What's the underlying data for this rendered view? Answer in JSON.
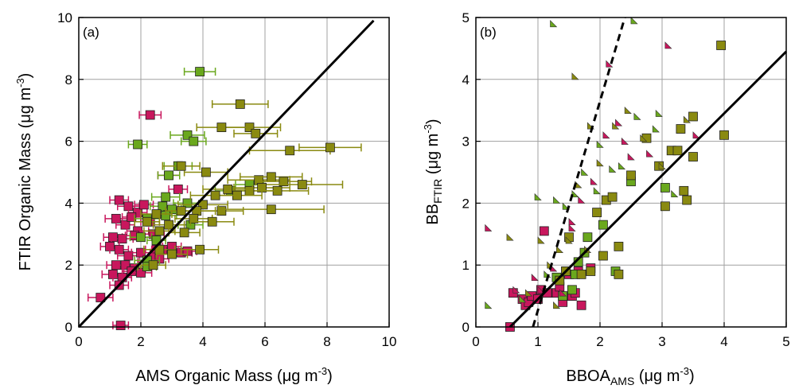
{
  "colors": {
    "pink": "#c8175d",
    "green": "#6aa81d",
    "olive": "#8a8a10",
    "grid": "#a0a0a0",
    "axis": "#000000"
  },
  "chart_data": [
    {
      "type": "scatter",
      "panel_label": "(a)",
      "xlabel": {
        "main": "AMS Organic Mass (",
        "mu": "μ",
        "unit": "g m",
        "sup": "-3",
        "close": ")"
      },
      "ylabel": {
        "main": "FTIR Organic Mass (",
        "mu": "μ",
        "unit": "g m",
        "sup": "-3",
        "close": ")"
      },
      "xlim": [
        0,
        10
      ],
      "ylim": [
        0,
        10
      ],
      "xticks": [
        "0",
        "2",
        "4",
        "6",
        "8",
        "10"
      ],
      "yticks": [
        "0",
        "2",
        "4",
        "6",
        "8",
        "10"
      ],
      "grid": true,
      "lines": [
        {
          "style": "solid",
          "x": [
            0,
            9.5
          ],
          "y": [
            0,
            9.9
          ]
        }
      ],
      "series": [
        {
          "color": "pink",
          "marker": "square",
          "points": [
            [
              0.7,
              0.95,
              0.4
            ],
            [
              1.35,
              0.05,
              0.25
            ],
            [
              2.3,
              6.85,
              0.35
            ],
            [
              1.3,
              4.1,
              0.3
            ],
            [
              1.6,
              3.9,
              0.35
            ],
            [
              1.9,
              3.7,
              0.3
            ],
            [
              2.1,
              3.95,
              0.3
            ],
            [
              1.2,
              3.5,
              0.35
            ],
            [
              1.5,
              3.3,
              0.3
            ],
            [
              1.9,
              3.1,
              0.35
            ],
            [
              1.1,
              2.9,
              0.3
            ],
            [
              1.4,
              2.85,
              0.35
            ],
            [
              1.8,
              2.95,
              0.3
            ],
            [
              2.4,
              3.0,
              0.35
            ],
            [
              1.0,
              2.6,
              0.3
            ],
            [
              1.3,
              2.5,
              0.3
            ],
            [
              1.6,
              2.3,
              0.35
            ],
            [
              2.0,
              2.4,
              0.3
            ],
            [
              2.5,
              2.5,
              0.35
            ],
            [
              1.2,
              2.0,
              0.3
            ],
            [
              1.5,
              2.0,
              0.3
            ],
            [
              1.8,
              1.9,
              0.35
            ],
            [
              2.2,
              2.1,
              0.3
            ],
            [
              1.1,
              1.7,
              0.35
            ],
            [
              1.4,
              1.6,
              0.3
            ],
            [
              1.7,
              1.8,
              0.3
            ],
            [
              2.0,
              1.75,
              0.35
            ],
            [
              2.4,
              2.25,
              0.3
            ],
            [
              2.7,
              2.5,
              0.35
            ],
            [
              3.0,
              2.6,
              0.3
            ],
            [
              3.3,
              2.4,
              0.35
            ],
            [
              3.5,
              2.45,
              0.3
            ],
            [
              2.9,
              4.9,
              0.35
            ],
            [
              3.2,
              4.45,
              0.3
            ],
            [
              2.6,
              2.2,
              0.3
            ],
            [
              1.3,
              1.35,
              0.3
            ],
            [
              2.3,
              3.4,
              0.3
            ],
            [
              1.7,
              3.55,
              0.3
            ]
          ]
        },
        {
          "color": "green",
          "marker": "square",
          "points": [
            [
              3.9,
              8.25,
              0.5
            ],
            [
              1.9,
              5.9,
              0.3
            ],
            [
              3.5,
              6.2,
              0.55
            ],
            [
              3.7,
              6.0,
              0.4
            ],
            [
              3.2,
              5.2,
              0.45
            ],
            [
              2.9,
              4.9,
              0.35
            ],
            [
              2.8,
              4.2,
              0.45
            ],
            [
              2.7,
              3.9,
              0.4
            ],
            [
              3.5,
              4.0,
              0.45
            ],
            [
              3.0,
              3.8,
              0.3
            ],
            [
              2.2,
              3.5,
              0.4
            ],
            [
              2.0,
              2.9,
              0.35
            ],
            [
              2.5,
              2.8,
              0.3
            ],
            [
              2.2,
              2.15,
              0.4
            ],
            [
              2.2,
              1.95,
              0.3
            ],
            [
              2.8,
              3.6,
              0.35
            ],
            [
              3.6,
              3.3,
              0.4
            ],
            [
              4.9,
              4.4,
              0.5
            ],
            [
              5.5,
              4.6,
              0.45
            ]
          ]
        },
        {
          "color": "olive",
          "marker": "square",
          "points": [
            [
              5.2,
              7.2,
              0.9
            ],
            [
              5.5,
              6.45,
              1.0
            ],
            [
              4.6,
              6.45,
              0.8
            ],
            [
              5.7,
              6.25,
              0.7
            ],
            [
              6.8,
              5.7,
              1.3
            ],
            [
              8.1,
              5.8,
              1.0
            ],
            [
              4.1,
              5.0,
              0.7
            ],
            [
              3.3,
              5.2,
              0.6
            ],
            [
              5.8,
              4.75,
              1.0
            ],
            [
              6.2,
              4.85,
              1.0
            ],
            [
              6.6,
              4.7,
              0.9
            ],
            [
              7.2,
              4.6,
              1.3
            ],
            [
              5.9,
              4.5,
              0.9
            ],
            [
              6.4,
              4.4,
              1.0
            ],
            [
              5.5,
              4.4,
              0.8
            ],
            [
              4.8,
              4.45,
              0.8
            ],
            [
              5.1,
              4.25,
              0.8
            ],
            [
              4.4,
              4.25,
              0.8
            ],
            [
              4.0,
              3.95,
              0.8
            ],
            [
              3.8,
              3.75,
              0.6
            ],
            [
              4.6,
              3.75,
              0.7
            ],
            [
              3.3,
              3.75,
              0.5
            ],
            [
              2.5,
              3.65,
              0.5
            ],
            [
              2.2,
              3.4,
              0.4
            ],
            [
              3.7,
              3.5,
              0.6
            ],
            [
              4.3,
              3.4,
              0.7
            ],
            [
              6.2,
              3.8,
              1.7
            ],
            [
              2.9,
              3.3,
              0.5
            ],
            [
              3.4,
              3.05,
              0.5
            ],
            [
              2.6,
              3.1,
              0.5
            ],
            [
              3.9,
              2.5,
              0.6
            ],
            [
              2.6,
              2.5,
              0.5
            ],
            [
              3.0,
              2.35,
              0.5
            ],
            [
              2.4,
              2.0,
              0.4
            ]
          ]
        }
      ]
    },
    {
      "type": "scatter",
      "panel_label": "(b)",
      "xlabel": {
        "main": "BBOA",
        "sub": "AMS",
        "open": " (",
        "mu": "μ",
        "unit": "g m",
        "sup": "-3",
        "close": ")"
      },
      "ylabel": {
        "main": "BB",
        "sub": "FTIR",
        "open": " (",
        "mu": "μ",
        "unit": "g m",
        "sup": "-3",
        "close": ")"
      },
      "xlim": [
        0,
        5
      ],
      "ylim": [
        0,
        5
      ],
      "xticks": [
        "0",
        "1",
        "2",
        "3",
        "4",
        "5"
      ],
      "yticks": [
        "0",
        "1",
        "2",
        "3",
        "4",
        "5"
      ],
      "grid": true,
      "lines": [
        {
          "style": "solid",
          "x": [
            0.55,
            5.0
          ],
          "y": [
            0.0,
            4.45
          ]
        },
        {
          "style": "dashed",
          "x": [
            0.92,
            2.4
          ],
          "y": [
            0.0,
            5.0
          ]
        }
      ],
      "series": [
        {
          "color": "pink",
          "marker": "square",
          "points": [
            [
              0.55,
              0.0
            ],
            [
              0.6,
              0.55
            ],
            [
              0.75,
              0.45
            ],
            [
              0.8,
              0.35
            ],
            [
              0.85,
              0.4
            ],
            [
              0.9,
              0.5
            ],
            [
              1.0,
              0.45
            ],
            [
              1.05,
              0.6
            ],
            [
              1.1,
              1.55
            ],
            [
              1.15,
              0.55
            ],
            [
              1.3,
              0.55
            ],
            [
              1.35,
              0.65
            ],
            [
              1.5,
              0.85
            ],
            [
              1.55,
              0.5
            ],
            [
              1.6,
              0.55
            ],
            [
              1.7,
              0.35
            ],
            [
              1.65,
              0.9
            ],
            [
              1.85,
              0.95
            ],
            [
              1.4,
              0.4
            ]
          ]
        },
        {
          "color": "green",
          "marker": "square",
          "points": [
            [
              1.3,
              0.8
            ],
            [
              1.45,
              0.9
            ],
            [
              1.55,
              0.6
            ],
            [
              1.65,
              1.05
            ],
            [
              1.75,
              1.2
            ],
            [
              1.8,
              1.45
            ],
            [
              2.05,
              1.65
            ],
            [
              2.25,
              0.9
            ],
            [
              2.5,
              2.35
            ],
            [
              3.05,
              2.25
            ],
            [
              1.4,
              0.5
            ],
            [
              1.6,
              0.85
            ]
          ]
        },
        {
          "color": "olive",
          "marker": "square",
          "points": [
            [
              1.5,
              1.45
            ],
            [
              1.7,
              0.85
            ],
            [
              1.85,
              0.9
            ],
            [
              1.95,
              1.85
            ],
            [
              2.05,
              1.15
            ],
            [
              2.1,
              2.05
            ],
            [
              2.2,
              2.1
            ],
            [
              2.3,
              1.3
            ],
            [
              2.3,
              0.85
            ],
            [
              2.5,
              2.45
            ],
            [
              2.75,
              3.05
            ],
            [
              2.95,
              2.6
            ],
            [
              3.05,
              1.95
            ],
            [
              3.15,
              2.85
            ],
            [
              3.25,
              2.85
            ],
            [
              3.3,
              3.2
            ],
            [
              3.35,
              2.2
            ],
            [
              3.4,
              2.05
            ],
            [
              3.5,
              3.4
            ],
            [
              3.5,
              2.75
            ],
            [
              3.95,
              4.55
            ],
            [
              4.0,
              3.1
            ],
            [
              1.35,
              0.75
            ],
            [
              1.45,
              0.9
            ]
          ]
        },
        {
          "color": "mixed",
          "marker": "triangle",
          "points": [
            [
              0.2,
              1.6
            ],
            [
              0.2,
              0.35
            ],
            [
              0.55,
              1.45
            ],
            [
              0.65,
              0.6
            ],
            [
              0.75,
              0.45
            ],
            [
              0.85,
              0.55
            ],
            [
              0.95,
              0.8
            ],
            [
              1.0,
              2.1
            ],
            [
              1.05,
              1.4
            ],
            [
              1.05,
              0.6
            ],
            [
              1.15,
              0.85
            ],
            [
              1.2,
              1.0
            ],
            [
              1.25,
              0.95
            ],
            [
              1.3,
              2.05
            ],
            [
              1.35,
              1.25
            ],
            [
              1.4,
              0.55
            ],
            [
              1.45,
              1.95
            ],
            [
              1.5,
              1.4
            ],
            [
              1.55,
              1.7
            ],
            [
              1.6,
              2.15
            ],
            [
              1.65,
              2.3
            ],
            [
              1.7,
              2.05
            ],
            [
              1.75,
              2.5
            ],
            [
              1.8,
              1.25
            ],
            [
              1.9,
              2.35
            ],
            [
              1.95,
              2.2
            ],
            [
              2.0,
              2.65
            ],
            [
              2.1,
              3.1
            ],
            [
              2.2,
              2.55
            ],
            [
              2.25,
              3.25
            ],
            [
              2.3,
              3.3
            ],
            [
              2.35,
              2.6
            ],
            [
              2.45,
              3.5
            ],
            [
              2.5,
              2.75
            ],
            [
              2.6,
              3.4
            ],
            [
              2.7,
              3.05
            ],
            [
              2.8,
              2.8
            ],
            [
              2.9,
              3.2
            ],
            [
              3.0,
              2.6
            ],
            [
              3.1,
              4.55
            ],
            [
              3.2,
              2.15
            ],
            [
              3.4,
              3.35
            ],
            [
              3.55,
              3.1
            ],
            [
              1.25,
              4.9
            ],
            [
              1.6,
              4.05
            ],
            [
              2.15,
              4.25
            ],
            [
              2.55,
              4.95
            ],
            [
              1.85,
              3.25
            ],
            [
              2.4,
              3.0
            ],
            [
              2.95,
              3.45
            ],
            [
              1.3,
              0.35
            ],
            [
              1.55,
              1.6
            ],
            [
              2.0,
              2.95
            ]
          ]
        }
      ]
    }
  ]
}
